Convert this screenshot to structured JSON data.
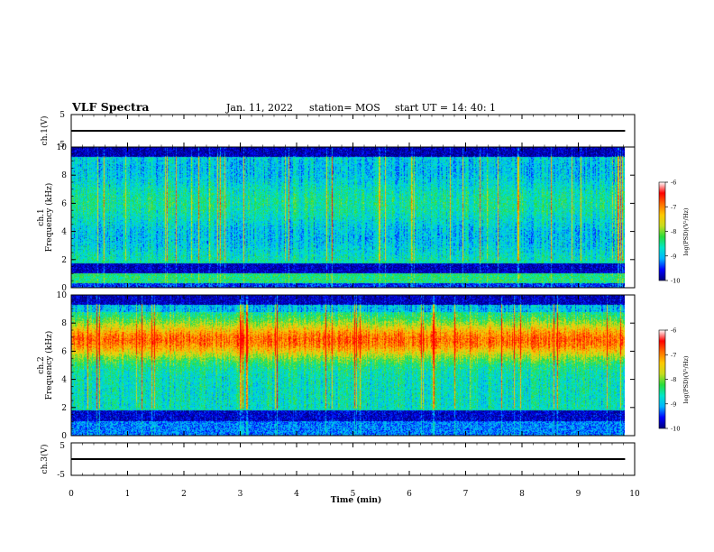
{
  "header": {
    "title": "VLF Spectra",
    "date": "Jan. 11, 2022",
    "station": "station= MOS",
    "start_ut": "start UT =  14: 40: 1"
  },
  "colors": {
    "colormap": [
      "#00007a",
      "#0000ff",
      "#00b4ff",
      "#00e6c8",
      "#28dc3c",
      "#c8dc1e",
      "#ffc800",
      "#ff6e00",
      "#ff0000",
      "#ffffff"
    ]
  },
  "chart_data": [
    {
      "type": "line",
      "panel": "ch.1 waveform",
      "ylabel": "ch.1(V)",
      "ylim": [
        -5,
        5
      ],
      "yticks": [
        "5",
        "-5"
      ],
      "x": [
        0,
        9.83
      ],
      "y": [
        0,
        0
      ],
      "xlim": [
        0,
        10
      ]
    },
    {
      "type": "heatmap",
      "panel": "ch.1 spectrogram",
      "ylabel": "Frequency (kHz)",
      "channel_label": "ch.1",
      "xlim": [
        0,
        10
      ],
      "ylim": [
        0,
        10
      ],
      "yticks": [
        "0",
        "2",
        "4",
        "6",
        "8",
        "10"
      ],
      "data_xmax": 9.83,
      "colorbar": {
        "label": "log(PSD)(V²/Hz)",
        "range": [
          -10,
          -6
        ],
        "ticks": [
          "-6",
          "-7",
          "-8",
          "-9",
          "-10"
        ]
      },
      "features": {
        "dominant": "cyan/green broadband 2-9.3 kHz",
        "quiet_band_khz": [
          1.0,
          1.7
        ],
        "top_band_khz": [
          9.3,
          10
        ]
      }
    },
    {
      "type": "heatmap",
      "panel": "ch.2 spectrogram",
      "ylabel": "Frequency (kHz)",
      "channel_label": "ch.2",
      "xlim": [
        0,
        10
      ],
      "ylim": [
        0,
        10
      ],
      "yticks": [
        "0",
        "2",
        "4",
        "6",
        "8",
        "10"
      ],
      "data_xmax": 9.83,
      "colorbar": {
        "label": "log(PSD)(V²/Hz)",
        "range": [
          -10,
          -6
        ],
        "ticks": [
          "-6",
          "-7",
          "-8",
          "-9",
          "-10"
        ]
      },
      "features": {
        "dominant": "red/orange intense band 5.5-8 kHz",
        "quiet_band_khz": [
          1.0,
          1.8
        ],
        "top_band_khz": [
          9.3,
          10
        ]
      }
    },
    {
      "type": "line",
      "panel": "ch.3 waveform",
      "ylabel": "ch.3(V)",
      "ylim": [
        -5,
        5
      ],
      "yticks": [
        "5",
        "-5"
      ],
      "x": [
        0,
        9.83
      ],
      "y": [
        0,
        0
      ],
      "xlim": [
        0,
        10
      ]
    }
  ],
  "xaxis": {
    "label": "Time (min)",
    "ticks": [
      "0",
      "1",
      "2",
      "3",
      "4",
      "5",
      "6",
      "7",
      "8",
      "9",
      "10"
    ]
  }
}
